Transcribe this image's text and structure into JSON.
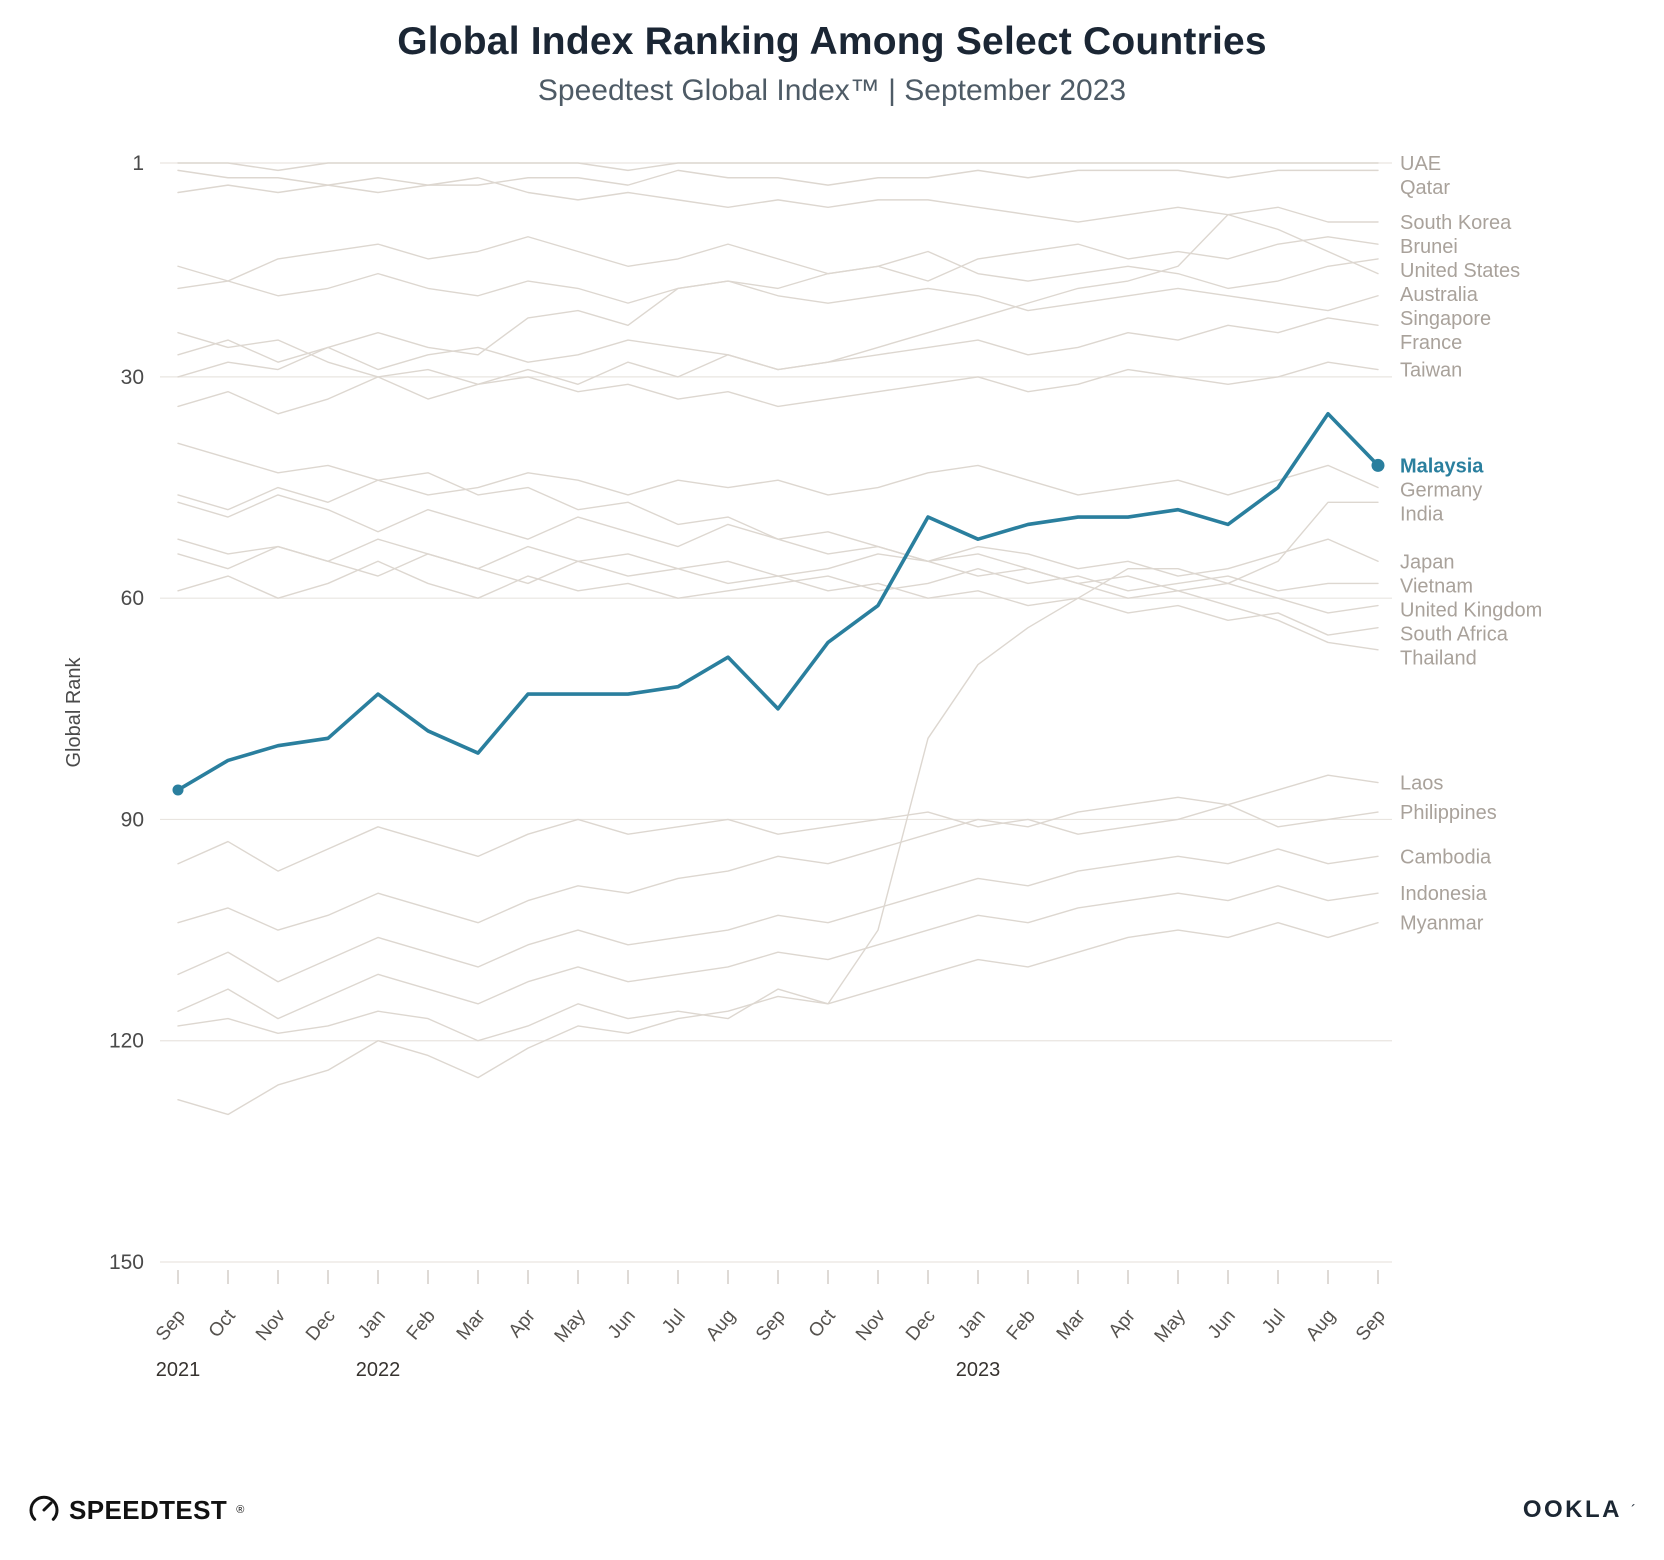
{
  "header": {
    "title": "Global Index Ranking Among Select Countries",
    "subtitle": "Speedtest Global Index™ | September 2023"
  },
  "chart_data": {
    "type": "line",
    "title": "Global Index Ranking Among Select Countries",
    "subtitle": "Speedtest Global Index™ | September 2023",
    "ylabel": "Global Rank",
    "y_ticks": [
      1,
      30,
      60,
      90,
      120,
      150
    ],
    "y_range": [
      1,
      150
    ],
    "y_inverted": true,
    "grid": true,
    "legend_position": "right-edge-labels",
    "x_labels": [
      "Sep",
      "Oct",
      "Nov",
      "Dec",
      "Jan",
      "Feb",
      "Mar",
      "Apr",
      "May",
      "Jun",
      "Jul",
      "Aug",
      "Sep",
      "Oct",
      "Nov",
      "Dec",
      "Jan",
      "Feb",
      "Mar",
      "Apr",
      "May",
      "Jun",
      "Jul",
      "Aug",
      "Sep"
    ],
    "year_labels": [
      {
        "label": "2021",
        "index": 0
      },
      {
        "label": "2022",
        "index": 4
      },
      {
        "label": "2023",
        "index": 16
      }
    ],
    "colors": {
      "highlight": "#2a7f9e",
      "line": "#ddd7d0",
      "grid": "#e9e5e0",
      "axis_text": "#4a4a4a",
      "tick_text": "#55524e",
      "year_text": "#37332f",
      "label": "#a9a29b"
    },
    "series": [
      {
        "name": "UAE",
        "values": [
          1,
          1,
          2,
          1,
          1,
          1,
          1,
          1,
          1,
          2,
          1,
          1,
          1,
          1,
          1,
          1,
          1,
          1,
          1,
          1,
          1,
          1,
          1,
          1,
          1
        ]
      },
      {
        "name": "Qatar",
        "values": [
          5,
          4,
          5,
          4,
          3,
          4,
          4,
          3,
          3,
          4,
          2,
          3,
          3,
          4,
          3,
          3,
          2,
          3,
          2,
          2,
          2,
          3,
          2,
          2,
          2
        ]
      },
      {
        "name": "South Korea",
        "values": [
          2,
          3,
          3,
          4,
          5,
          4,
          3,
          5,
          6,
          5,
          6,
          7,
          6,
          7,
          6,
          6,
          7,
          8,
          9,
          8,
          7,
          8,
          7,
          9,
          9
        ]
      },
      {
        "name": "Brunei",
        "values": [
          30,
          28,
          29,
          26,
          24,
          26,
          27,
          22,
          21,
          23,
          18,
          17,
          18,
          16,
          15,
          17,
          14,
          13,
          12,
          14,
          13,
          14,
          12,
          11,
          12
        ]
      },
      {
        "name": "United States",
        "values": [
          15,
          17,
          14,
          13,
          12,
          14,
          13,
          11,
          13,
          15,
          14,
          12,
          14,
          16,
          15,
          13,
          16,
          17,
          16,
          15,
          16,
          18,
          17,
          15,
          14
        ]
      },
      {
        "name": "Australia",
        "values": [
          27,
          25,
          28,
          26,
          29,
          27,
          26,
          28,
          27,
          25,
          26,
          27,
          29,
          28,
          26,
          24,
          22,
          20,
          18,
          17,
          15,
          8,
          10,
          13,
          16
        ]
      },
      {
        "name": "Singapore",
        "values": [
          18,
          17,
          19,
          18,
          16,
          18,
          19,
          17,
          18,
          20,
          18,
          17,
          19,
          20,
          19,
          18,
          19,
          21,
          20,
          19,
          18,
          19,
          20,
          21,
          19
        ]
      },
      {
        "name": "France",
        "values": [
          34,
          32,
          35,
          33,
          30,
          33,
          31,
          29,
          31,
          28,
          30,
          27,
          29,
          28,
          27,
          26,
          25,
          27,
          26,
          24,
          25,
          23,
          24,
          22,
          23
        ]
      },
      {
        "name": "Taiwan",
        "values": [
          24,
          26,
          25,
          28,
          30,
          29,
          31,
          30,
          32,
          31,
          33,
          32,
          34,
          33,
          32,
          31,
          30,
          32,
          31,
          29,
          30,
          31,
          30,
          28,
          29
        ]
      },
      {
        "name": "Malaysia",
        "highlight": true,
        "values": [
          86,
          82,
          80,
          79,
          73,
          78,
          81,
          73,
          73,
          73,
          72,
          68,
          75,
          66,
          61,
          49,
          52,
          50,
          49,
          49,
          48,
          50,
          45,
          35,
          42
        ]
      },
      {
        "name": "Germany",
        "values": [
          46,
          48,
          45,
          47,
          44,
          46,
          45,
          43,
          44,
          46,
          44,
          45,
          44,
          46,
          45,
          43,
          42,
          44,
          46,
          45,
          44,
          46,
          44,
          42,
          45
        ]
      },
      {
        "name": "India",
        "values": [
          118,
          117,
          119,
          118,
          116,
          117,
          120,
          118,
          115,
          117,
          116,
          117,
          113,
          115,
          105,
          79,
          69,
          64,
          60,
          56,
          56,
          58,
          55,
          47,
          47
        ]
      },
      {
        "name": "Japan",
        "values": [
          52,
          54,
          53,
          55,
          52,
          54,
          56,
          53,
          55,
          54,
          56,
          55,
          57,
          56,
          54,
          55,
          53,
          54,
          56,
          55,
          57,
          56,
          54,
          52,
          55
        ]
      },
      {
        "name": "Vietnam",
        "values": [
          59,
          57,
          60,
          58,
          55,
          58,
          60,
          57,
          59,
          58,
          60,
          59,
          58,
          57,
          59,
          58,
          56,
          58,
          57,
          59,
          58,
          57,
          59,
          58,
          58
        ]
      },
      {
        "name": "United Kingdom",
        "values": [
          39,
          41,
          43,
          42,
          44,
          43,
          46,
          45,
          48,
          47,
          50,
          49,
          52,
          51,
          53,
          55,
          54,
          56,
          58,
          57,
          59,
          58,
          60,
          62,
          61
        ]
      },
      {
        "name": "South Africa",
        "values": [
          54,
          56,
          53,
          55,
          57,
          54,
          56,
          58,
          55,
          57,
          56,
          58,
          57,
          59,
          58,
          60,
          59,
          61,
          60,
          62,
          61,
          63,
          62,
          65,
          64
        ]
      },
      {
        "name": "Thailand",
        "values": [
          47,
          49,
          46,
          48,
          51,
          48,
          50,
          52,
          49,
          51,
          53,
          50,
          52,
          54,
          53,
          55,
          57,
          56,
          58,
          60,
          59,
          61,
          63,
          66,
          67
        ]
      },
      {
        "name": "Laos",
        "values": [
          104,
          102,
          105,
          103,
          100,
          102,
          104,
          101,
          99,
          100,
          98,
          97,
          95,
          96,
          94,
          92,
          90,
          91,
          89,
          88,
          87,
          88,
          86,
          84,
          85
        ]
      },
      {
        "name": "Philippines",
        "values": [
          96,
          93,
          97,
          94,
          91,
          93,
          95,
          92,
          90,
          92,
          91,
          90,
          92,
          91,
          90,
          89,
          91,
          90,
          92,
          91,
          90,
          88,
          91,
          90,
          89
        ]
      },
      {
        "name": "Cambodia",
        "values": [
          111,
          108,
          112,
          109,
          106,
          108,
          110,
          107,
          105,
          107,
          106,
          105,
          103,
          104,
          102,
          100,
          98,
          99,
          97,
          96,
          95,
          96,
          94,
          96,
          95
        ]
      },
      {
        "name": "Indonesia",
        "values": [
          116,
          113,
          117,
          114,
          111,
          113,
          115,
          112,
          110,
          112,
          111,
          110,
          108,
          109,
          107,
          105,
          103,
          104,
          102,
          101,
          100,
          101,
          99,
          101,
          100
        ]
      },
      {
        "name": "Myanmar",
        "values": [
          128,
          130,
          126,
          124,
          120,
          122,
          125,
          121,
          118,
          119,
          117,
          116,
          114,
          115,
          113,
          111,
          109,
          110,
          108,
          106,
          105,
          106,
          104,
          106,
          104
        ]
      }
    ]
  },
  "footer": {
    "speedtest_label": "SPEEDTEST",
    "speedtest_mark": "®",
    "ookla_label": "OOKLA",
    "ookla_mark": "´"
  }
}
